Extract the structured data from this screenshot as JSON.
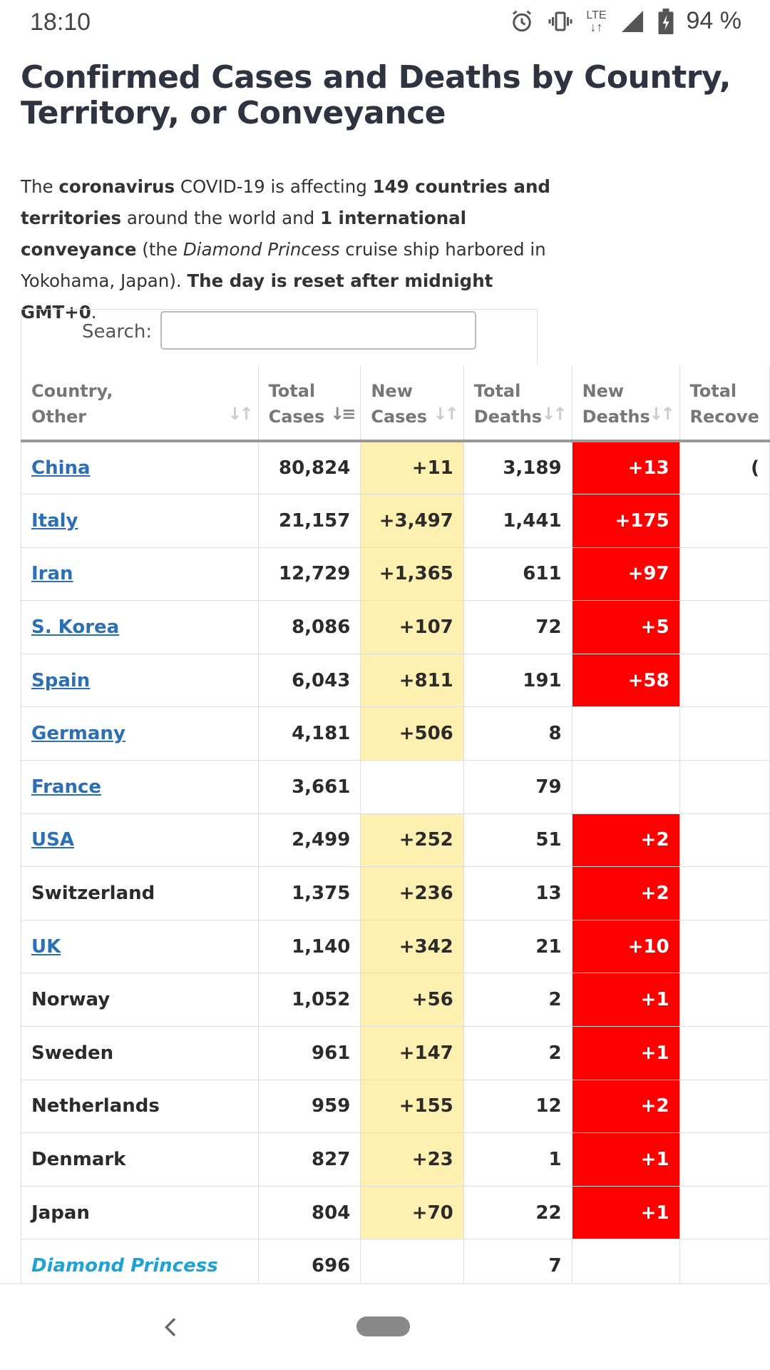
{
  "status_bar": {
    "time": "18:10",
    "network": "LTE",
    "battery": "94 %",
    "icons": [
      "alarm-icon",
      "vibrate-icon",
      "lte-icon",
      "signal-icon",
      "battery-charging-icon"
    ]
  },
  "title": "Confirmed Cases and Deaths by Country, Territory, or Conveyance",
  "intro": {
    "p1": "The ",
    "b1": "coronavirus",
    "p2": " COVID-19 is affecting ",
    "b2": "149 countries and territories",
    "p3": " around the world and ",
    "b3": "1 international conveyance",
    "p4": " (the ",
    "i1": "Diamond Princess",
    "p5": " cruise ship harbored in Yokohama, Japan). ",
    "b4": "The day is reset after midnight GMT+0",
    "p6": "."
  },
  "search": {
    "label": "Search:",
    "value": ""
  },
  "table": {
    "columns": [
      {
        "line1": "Country,",
        "line2": "Other"
      },
      {
        "line1": "Total",
        "line2": "Cases"
      },
      {
        "line1": "New",
        "line2": "Cases"
      },
      {
        "line1": "Total",
        "line2": "Deaths"
      },
      {
        "line1": "New",
        "line2": "Deaths"
      },
      {
        "line1": "Total",
        "line2": "Recove"
      }
    ],
    "rows": [
      {
        "country": "China",
        "link": true,
        "total_cases": "80,824",
        "new_cases": "+11",
        "total_deaths": "3,189",
        "new_deaths": "+13",
        "total_recovered": "("
      },
      {
        "country": "Italy",
        "link": true,
        "total_cases": "21,157",
        "new_cases": "+3,497",
        "total_deaths": "1,441",
        "new_deaths": "+175",
        "total_recovered": ""
      },
      {
        "country": "Iran",
        "link": true,
        "total_cases": "12,729",
        "new_cases": "+1,365",
        "total_deaths": "611",
        "new_deaths": "+97",
        "total_recovered": ""
      },
      {
        "country": "S. Korea",
        "link": true,
        "total_cases": "8,086",
        "new_cases": "+107",
        "total_deaths": "72",
        "new_deaths": "+5",
        "total_recovered": ""
      },
      {
        "country": "Spain",
        "link": true,
        "total_cases": "6,043",
        "new_cases": "+811",
        "total_deaths": "191",
        "new_deaths": "+58",
        "total_recovered": ""
      },
      {
        "country": "Germany",
        "link": true,
        "total_cases": "4,181",
        "new_cases": "+506",
        "total_deaths": "8",
        "new_deaths": "",
        "total_recovered": ""
      },
      {
        "country": "France",
        "link": true,
        "total_cases": "3,661",
        "new_cases": "",
        "total_deaths": "79",
        "new_deaths": "",
        "total_recovered": ""
      },
      {
        "country": "USA",
        "link": true,
        "total_cases": "2,499",
        "new_cases": "+252",
        "total_deaths": "51",
        "new_deaths": "+2",
        "total_recovered": ""
      },
      {
        "country": "Switzerland",
        "link": false,
        "total_cases": "1,375",
        "new_cases": "+236",
        "total_deaths": "13",
        "new_deaths": "+2",
        "total_recovered": ""
      },
      {
        "country": "UK",
        "link": true,
        "total_cases": "1,140",
        "new_cases": "+342",
        "total_deaths": "21",
        "new_deaths": "+10",
        "total_recovered": ""
      },
      {
        "country": "Norway",
        "link": false,
        "total_cases": "1,052",
        "new_cases": "+56",
        "total_deaths": "2",
        "new_deaths": "+1",
        "total_recovered": ""
      },
      {
        "country": "Sweden",
        "link": false,
        "total_cases": "961",
        "new_cases": "+147",
        "total_deaths": "2",
        "new_deaths": "+1",
        "total_recovered": ""
      },
      {
        "country": "Netherlands",
        "link": false,
        "total_cases": "959",
        "new_cases": "+155",
        "total_deaths": "12",
        "new_deaths": "+2",
        "total_recovered": ""
      },
      {
        "country": "Denmark",
        "link": false,
        "total_cases": "827",
        "new_cases": "+23",
        "total_deaths": "1",
        "new_deaths": "+1",
        "total_recovered": ""
      },
      {
        "country": "Japan",
        "link": false,
        "total_cases": "804",
        "new_cases": "+70",
        "total_deaths": "22",
        "new_deaths": "+1",
        "total_recovered": ""
      },
      {
        "country": "Diamond Princess",
        "link": false,
        "ship": true,
        "total_cases": "696",
        "new_cases": "",
        "total_deaths": "7",
        "new_deaths": "",
        "total_recovered": ""
      }
    ]
  },
  "colors": {
    "new_cases_highlight": "#fdf0b0",
    "new_deaths_highlight": "#ff0000",
    "link": "#2d6fb3",
    "ship": "#1fa3d6"
  },
  "nav": {
    "icons": [
      "back-icon",
      "home-pill"
    ]
  }
}
